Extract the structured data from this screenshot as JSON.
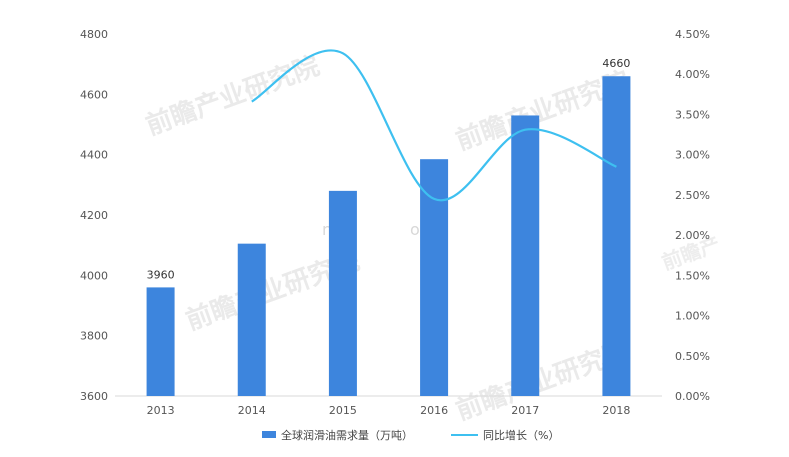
{
  "chart_data": {
    "type": "bar",
    "categories": [
      "2013",
      "2014",
      "2015",
      "2016",
      "2017",
      "2018"
    ],
    "series": [
      {
        "name": "全球润滑油需求量（万吨）",
        "type": "bar",
        "axis": "left",
        "values": [
          3960,
          4105,
          4280,
          4385,
          4530,
          4660
        ],
        "labels": [
          "3960",
          "",
          "",
          "",
          "",
          "4660"
        ]
      },
      {
        "name": "同比增长（%）",
        "type": "line",
        "axis": "right",
        "values": [
          null,
          3.66,
          4.26,
          2.45,
          3.31,
          2.85
        ]
      }
    ],
    "y_left": {
      "min": 3600,
      "max": 4800,
      "ticks": [
        "3600",
        "3800",
        "4000",
        "4200",
        "4400",
        "4600",
        "4800"
      ]
    },
    "y_right": {
      "min": 0,
      "max": 4.5,
      "ticks": [
        "0.00%",
        "0.50%",
        "1.00%",
        "1.50%",
        "2.00%",
        "2.50%",
        "3.00%",
        "3.50%",
        "4.00%",
        "4.50%"
      ]
    },
    "legend_position": "bottom",
    "grid": false,
    "colors": {
      "bar": "#3d85dd",
      "line": "#3ec0f0"
    }
  },
  "watermark": {
    "brand": "前瞻产业研究院",
    "brand_short": "前瞻产",
    "url_fragment": "nt-a",
    "url_fragment2": "ossg"
  }
}
